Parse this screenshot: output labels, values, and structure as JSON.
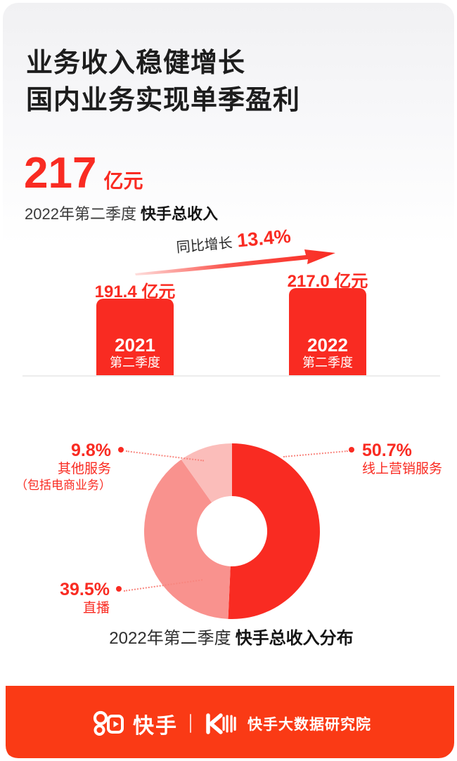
{
  "header": {
    "title_line1": "业务收入稳健增长",
    "title_line2": "国内业务实现单季盈利"
  },
  "headline": {
    "value": "217",
    "unit": "亿元",
    "period": "2022年第二季度",
    "label": "快手总收入"
  },
  "growth": {
    "label": "同比增长",
    "value": "13.4%"
  },
  "chart_data": [
    {
      "type": "bar",
      "categories": [
        "2021 第二季度",
        "2022 第二季度"
      ],
      "values": [
        191.4,
        217.0
      ],
      "unit": "亿元",
      "value_labels": [
        "191.4 亿元",
        "217.0 亿元"
      ],
      "annotation": "同比增长 13.4%",
      "bar_color": "#f92b22",
      "ylim": [
        0,
        217
      ],
      "grid": false
    },
    {
      "type": "pie",
      "donut": true,
      "title": "2022年第二季度 快手总收入分布",
      "labels": [
        "线上营销服务",
        "直播",
        "其他服务（包括电商业务）"
      ],
      "values": [
        50.7,
        39.5,
        9.8
      ],
      "colors": [
        "#f92b22",
        "#f9928e",
        "#fbbdba"
      ],
      "start_angle": "top",
      "direction": "clockwise",
      "legend_position": "callouts"
    }
  ],
  "bar_chart": {
    "bars": [
      {
        "value_label": "191.4 亿元",
        "year": "2021",
        "period": "第二季度"
      },
      {
        "value_label": "217.0 亿元",
        "year": "2022",
        "period": "第二季度"
      }
    ]
  },
  "donut_chart": {
    "callouts": [
      {
        "pct": "50.7%",
        "name": "线上营销服务"
      },
      {
        "pct": "39.5%",
        "name": "直播"
      },
      {
        "pct": "9.8%",
        "name": "其他服务",
        "name2": "（包括电商业务）"
      }
    ],
    "caption_period": "2022年第二季度",
    "caption_label": "快手总收入分布"
  },
  "footer": {
    "brand": "快手",
    "org": "快手大数据研究院"
  },
  "colors": {
    "primary_red": "#f92b22",
    "salmon": "#f9928e",
    "light_pink": "#fbbdba",
    "footer_red": "#fa3a15",
    "ink": "#1d1d1d",
    "baseline_gray": "#ececec"
  }
}
